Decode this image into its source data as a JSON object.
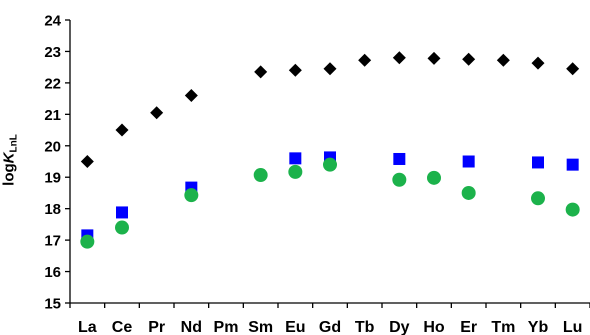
{
  "chart_data": {
    "type": "scatter",
    "categories": [
      "La",
      "Ce",
      "Pr",
      "Nd",
      "Pm",
      "Sm",
      "Eu",
      "Gd",
      "Tb",
      "Dy",
      "Ho",
      "Er",
      "Tm",
      "Yb",
      "Lu"
    ],
    "ylabel": {
      "prefix": "log",
      "var": "K",
      "sub": "LnL"
    },
    "ylim": [
      15,
      24
    ],
    "yticks": [
      15,
      16,
      17,
      18,
      19,
      20,
      21,
      22,
      23,
      24
    ],
    "grid": false,
    "series": [
      {
        "marker": "diamond",
        "color": "#000000",
        "values": [
          19.5,
          20.5,
          21.05,
          21.6,
          null,
          22.35,
          22.4,
          22.45,
          22.72,
          22.8,
          22.78,
          22.75,
          22.72,
          22.63,
          22.45
        ]
      },
      {
        "marker": "square",
        "color": "#0000ff",
        "values": [
          17.15,
          17.88,
          null,
          18.67,
          null,
          null,
          19.6,
          19.63,
          null,
          19.58,
          null,
          19.5,
          null,
          19.47,
          19.4
        ]
      },
      {
        "marker": "circle",
        "color": "#1cb24b",
        "values": [
          16.95,
          17.4,
          null,
          18.43,
          null,
          19.07,
          19.17,
          19.4,
          null,
          18.92,
          18.98,
          18.5,
          null,
          18.33,
          17.97
        ]
      }
    ]
  }
}
